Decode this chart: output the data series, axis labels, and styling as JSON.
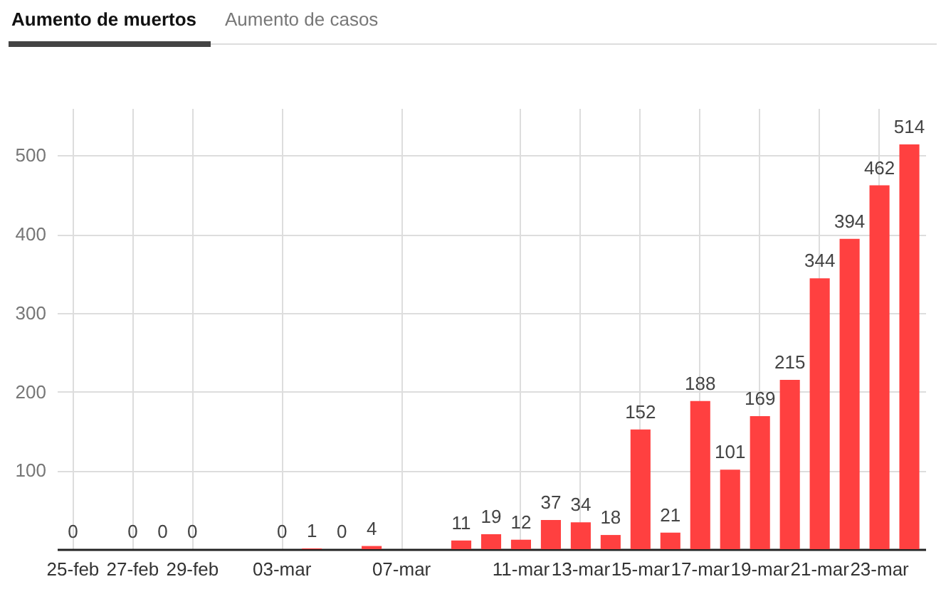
{
  "chart_data": {
    "type": "bar",
    "annotations": [
      "Aumento de muertos",
      "Aumento de casos"
    ],
    "categories": [
      "25-feb",
      null,
      "27-feb",
      null,
      "29-feb",
      null,
      null,
      "03-mar",
      null,
      null,
      null,
      "07-mar",
      null,
      null,
      null,
      "11-mar",
      null,
      "13-mar",
      null,
      "15-mar",
      null,
      "17-mar",
      null,
      "19-mar",
      null,
      "21-mar",
      null,
      "23-mar",
      null
    ],
    "values": [
      0,
      null,
      0,
      0,
      0,
      null,
      null,
      0,
      1,
      0,
      4,
      null,
      null,
      11,
      19,
      12,
      37,
      34,
      18,
      152,
      21,
      188,
      101,
      169,
      215,
      344,
      394,
      462,
      514
    ],
    "color": "#ff4040",
    "ylim": [
      0,
      560
    ],
    "yticks": [
      {
        "value": 0,
        "label": null
      },
      100,
      200,
      300,
      400,
      500
    ],
    "grid": true,
    "data_labels": true
  }
}
